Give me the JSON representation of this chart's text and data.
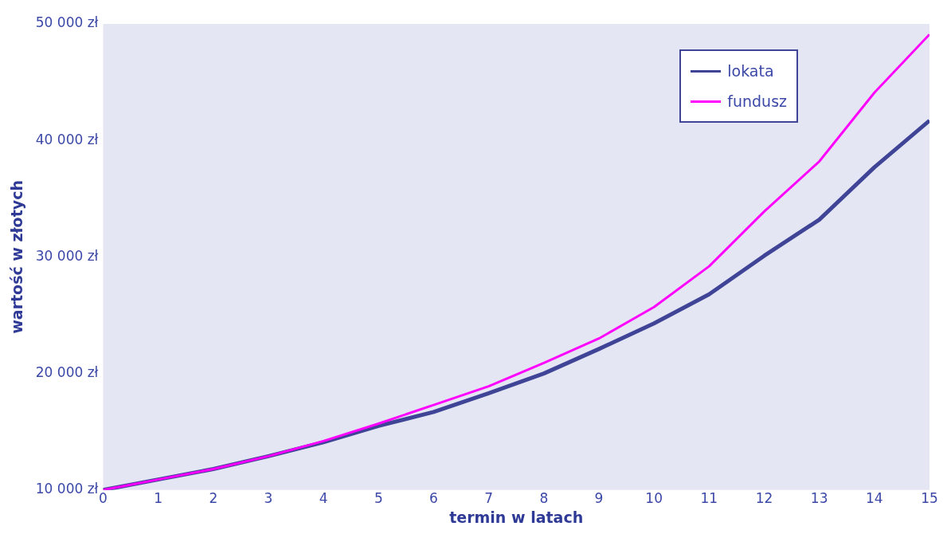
{
  "chart_data": {
    "type": "line",
    "xlabel": "termin w latach",
    "ylabel": "wartość w złotych",
    "x": [
      0,
      1,
      2,
      3,
      4,
      5,
      6,
      7,
      8,
      9,
      10,
      11,
      12,
      13,
      14,
      15
    ],
    "series": [
      {
        "name": "lokata",
        "color": "#3f4496",
        "values": [
          10000,
          10900,
          11800,
          12900,
          14100,
          15500,
          16700,
          18300,
          20000,
          22100,
          24300,
          26800,
          30100,
          33200,
          37700,
          41700
        ]
      },
      {
        "name": "fundusz",
        "color": "#ff00ff",
        "values": [
          10000,
          10900,
          11800,
          12900,
          14200,
          15700,
          17300,
          18900,
          20900,
          23000,
          25700,
          29200,
          33900,
          38200,
          44100,
          49100
        ]
      }
    ],
    "xlim": [
      0,
      15
    ],
    "xticks": [
      0,
      1,
      2,
      3,
      4,
      5,
      6,
      7,
      8,
      9,
      10,
      11,
      12,
      13,
      14,
      15
    ],
    "ylim": [
      10000,
      50000
    ],
    "yticks": [
      {
        "value": 10000,
        "label": "10 000 zł"
      },
      {
        "value": 20000,
        "label": "20 000 zł"
      },
      {
        "value": 30000,
        "label": "30 000 zł"
      },
      {
        "value": 40000,
        "label": "40 000 zł"
      },
      {
        "value": 50000,
        "label": "50 000 zł"
      }
    ],
    "grid": false,
    "legend": "top right",
    "marker": "none",
    "line_style": "solid"
  }
}
